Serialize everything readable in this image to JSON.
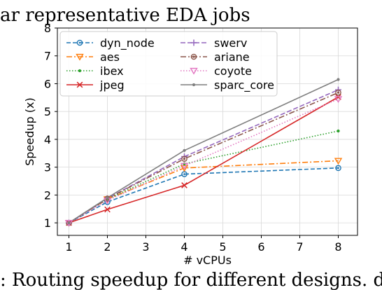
{
  "caption_top": "ar representative EDA jobs",
  "caption_bottom": ": Routing speedup for different designs. dyn_nod",
  "chart_data": {
    "type": "line",
    "xlabel": "# vCPUs",
    "ylabel": "Speedup (x)",
    "xlim": [
      0.7,
      8.5
    ],
    "ylim": [
      0.55,
      8.0
    ],
    "xticks": [
      1,
      2,
      3,
      4,
      5,
      6,
      7,
      8
    ],
    "yticks": [
      1,
      2,
      3,
      4,
      5,
      6,
      7,
      8
    ],
    "grid": true,
    "legend_position": "top-left",
    "x": [
      1,
      2,
      4,
      8
    ],
    "series": [
      {
        "name": "dyn_node",
        "values": [
          1.0,
          1.75,
          2.75,
          2.97
        ],
        "color": "#1f77b4",
        "dash": "6,3",
        "marker": "circle"
      },
      {
        "name": "aes",
        "values": [
          1.0,
          1.85,
          2.97,
          3.23
        ],
        "color": "#ff7f0e",
        "dash": "8,3,2,3",
        "marker": "triangle-down"
      },
      {
        "name": "ibex",
        "values": [
          1.0,
          1.85,
          3.12,
          4.3
        ],
        "color": "#2ca02c",
        "dash": "1.5,2.5",
        "marker": "point"
      },
      {
        "name": "jpeg",
        "values": [
          1.0,
          1.48,
          2.35,
          5.52
        ],
        "color": "#d62728",
        "dash": "",
        "marker": "x"
      },
      {
        "name": "swerv",
        "values": [
          1.0,
          1.87,
          3.38,
          5.78
        ],
        "color": "#9467bd",
        "dash": "7,3",
        "marker": "plus"
      },
      {
        "name": "ariane",
        "values": [
          1.0,
          1.87,
          3.3,
          5.68
        ],
        "color": "#8c564b",
        "dash": "8,3,2,3",
        "marker": "circle-dot"
      },
      {
        "name": "coyote",
        "values": [
          1.0,
          1.8,
          3.05,
          5.45
        ],
        "color": "#e377c2",
        "dash": "1.5,2.5",
        "marker": "triangle-down"
      },
      {
        "name": "sparc_core",
        "values": [
          1.0,
          1.9,
          3.6,
          6.15
        ],
        "color": "#7f7f7f",
        "dash": "",
        "marker": "point"
      }
    ]
  }
}
